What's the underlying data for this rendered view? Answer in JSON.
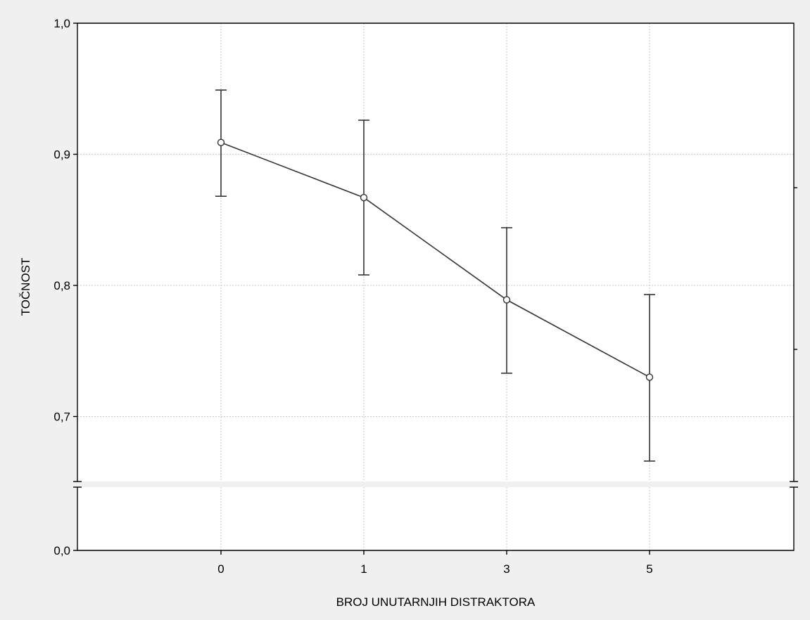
{
  "chart_data": {
    "type": "line",
    "title": "",
    "xlabel": "BROJ UNUTARNJIH DISTRAKTORA",
    "ylabel": "TOČNOST",
    "categories": [
      "0",
      "1",
      "3",
      "5"
    ],
    "series": [
      {
        "values": [
          0.909,
          0.867,
          0.789,
          0.73
        ],
        "error_low": [
          0.868,
          0.808,
          0.733,
          0.666
        ],
        "error_high": [
          0.949,
          0.926,
          0.844,
          0.793
        ]
      }
    ],
    "y_ticks": [
      "1,0",
      "0,9",
      "0,8",
      "0,7",
      "0,0"
    ],
    "y_tick_values": [
      1.0,
      0.9,
      0.8,
      0.7,
      0.0
    ],
    "ylim": [
      0.0,
      1.0
    ],
    "y_axis_break": true,
    "grid": true,
    "colors": {
      "line": "#333333",
      "marker_fill": "#ffffff",
      "grid": "#c8c8c8",
      "frame": "#000000",
      "background": "#f0f0f0",
      "plot_background": "#ffffff"
    }
  }
}
